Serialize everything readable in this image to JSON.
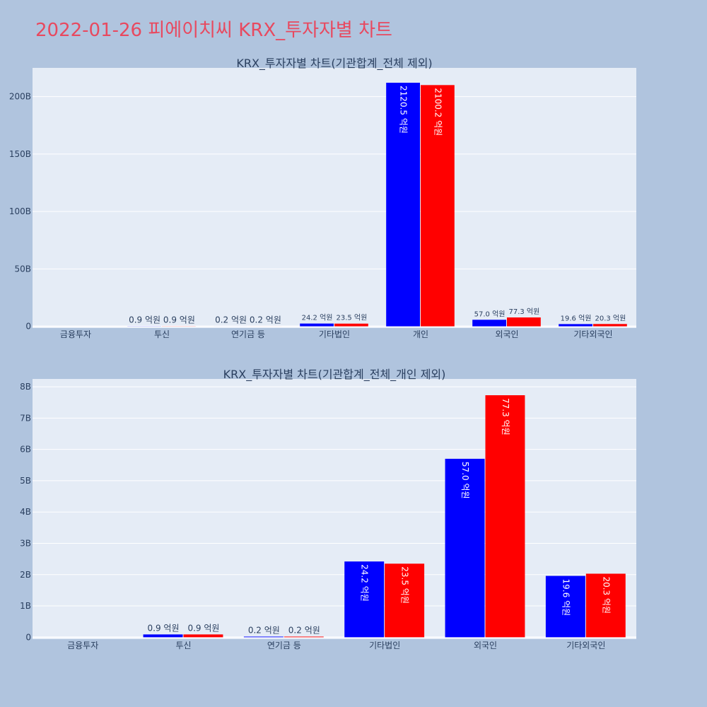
{
  "page": {
    "title": "2022-01-26 피에이치씨 KRX_투자자별 차트",
    "background": "#b0c4de",
    "title_color": "#e8495f",
    "plot_background": "#e5ecf6"
  },
  "chart_data": [
    {
      "type": "bar",
      "title": "KRX_투자자별 차트(기관합계_전체 제외)",
      "categories": [
        "금융투자",
        "투신",
        "연기금 등",
        "기타법인",
        "개인",
        "외국인",
        "기타외국인"
      ],
      "series": [
        {
          "color": "#0000ff",
          "values": [
            0,
            90000000,
            20000000,
            2420000000,
            212050000000,
            5700000000,
            1960000000
          ],
          "labels": [
            "",
            "0.9 억원",
            "0.2 억원",
            "24.2 억원",
            "2120.5 억원",
            "57.0 억원",
            "19.6 억원"
          ]
        },
        {
          "color": "#ff0000",
          "values": [
            0,
            90000000,
            20000000,
            2350000000,
            210020000000,
            7730000000,
            2030000000
          ],
          "labels": [
            "",
            "0.9 억원",
            "0.2 억원",
            "23.5 억원",
            "2100.2 억원",
            "77.3 억원",
            "20.3 억원"
          ]
        }
      ],
      "ytick_values": [
        0,
        50000000000,
        100000000000,
        150000000000,
        200000000000
      ],
      "ytick_labels": [
        "0",
        "50B",
        "100B",
        "150B",
        "200B"
      ],
      "ylim": [
        -1500000000,
        225000000000
      ],
      "grid": true,
      "legend": "none"
    },
    {
      "type": "bar",
      "title": "KRX_투자자별 차트(기관합계_전체_개인 제외)",
      "categories": [
        "금융투자",
        "투신",
        "연기금 등",
        "기타법인",
        "외국인",
        "기타외국인"
      ],
      "series": [
        {
          "color": "#0000ff",
          "values": [
            0,
            90000000,
            20000000,
            2420000000,
            5700000000,
            1960000000
          ],
          "labels": [
            "",
            "0.9 억원",
            "0.2 억원",
            "24.2 억원",
            "57.0 억원",
            "19.6 억원"
          ]
        },
        {
          "color": "#ff0000",
          "values": [
            0,
            90000000,
            20000000,
            2350000000,
            7730000000,
            2030000000
          ],
          "labels": [
            "",
            "0.9 억원",
            "0.2 억원",
            "23.5 억원",
            "77.3 억원",
            "20.3 억원"
          ]
        }
      ],
      "ytick_values": [
        0,
        1000000000,
        2000000000,
        3000000000,
        4000000000,
        5000000000,
        6000000000,
        7000000000,
        8000000000
      ],
      "ytick_labels": [
        "0",
        "1B",
        "2B",
        "3B",
        "4B",
        "5B",
        "6B",
        "7B",
        "8B"
      ],
      "ylim": [
        -60000000,
        8250000000
      ],
      "grid": true,
      "legend": "none"
    }
  ]
}
